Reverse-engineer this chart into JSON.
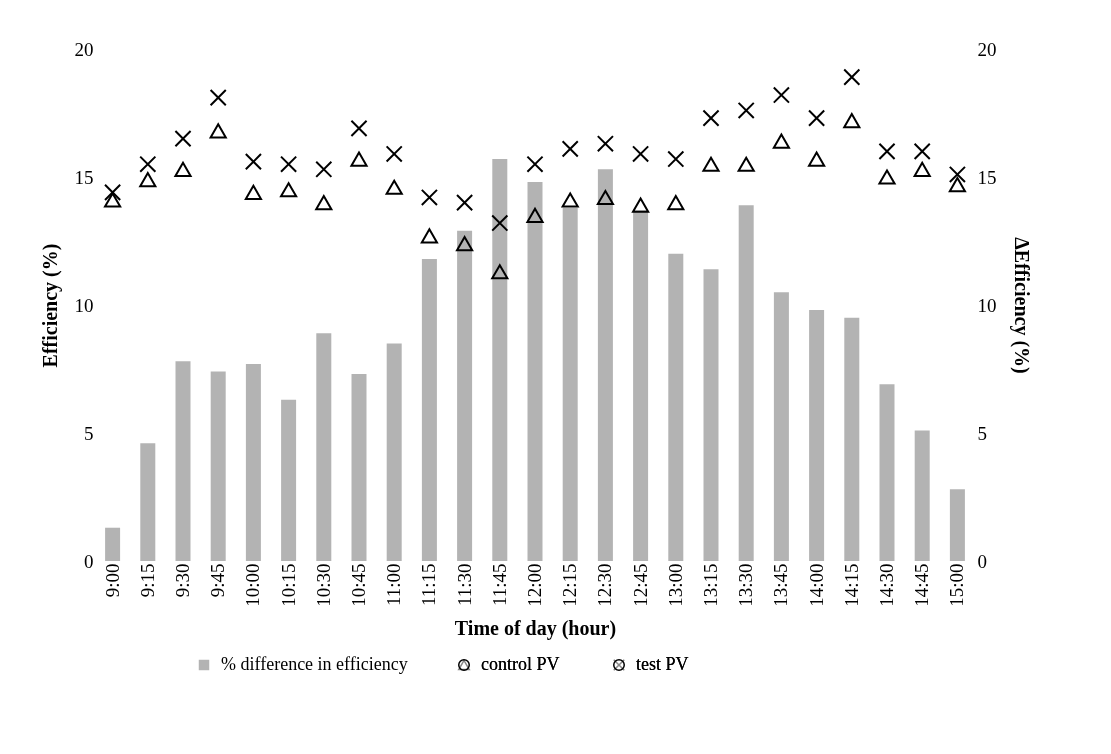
{
  "chart_data": {
    "type": "bar",
    "xlabel": "Time of day (hour)",
    "ylabel": "Efficiency (%)",
    "y2label": "ΔEfficiency (%)",
    "categories": [
      "9:00",
      "9:15",
      "9:30",
      "9:45",
      "10:00",
      "10:15",
      "10:30",
      "10:45",
      "11:00",
      "11:15",
      "11:30",
      "11:45",
      "12:00",
      "12:15",
      "12:30",
      "12:45",
      "13:00",
      "13:15",
      "13:30",
      "13:45",
      "14:00",
      "14:15",
      "14:30",
      "14:45",
      "15:00"
    ],
    "series": [
      {
        "name": "% difference in efficiency",
        "axis": "y2",
        "color": "#b3b3b3",
        "values": [
          1.3,
          4.6,
          7.8,
          7.4,
          7.7,
          6.3,
          8.9,
          7.3,
          8.5,
          11.8,
          12.9,
          15.7,
          14.8,
          13.8,
          15.3,
          13.7,
          12.0,
          11.4,
          13.9,
          10.5,
          9.8,
          9.5,
          6.9,
          5.1,
          2.8
        ]
      },
      {
        "name": "control PV",
        "type": "scatter",
        "marker": "triangle",
        "color": "#000000",
        "values": [
          14.1,
          14.9,
          15.3,
          16.8,
          14.4,
          14.5,
          14.0,
          15.7,
          14.6,
          12.7,
          12.4,
          11.3,
          13.5,
          14.1,
          14.2,
          13.9,
          14.0,
          15.5,
          15.5,
          16.4,
          15.7,
          17.2,
          15.0,
          15.3,
          14.7
        ]
      },
      {
        "name": "test PV",
        "type": "scatter",
        "marker": "cross",
        "color": "#000000",
        "values": [
          14.4,
          15.5,
          16.5,
          18.1,
          15.6,
          15.5,
          15.3,
          16.9,
          15.9,
          14.2,
          14.0,
          13.2,
          15.5,
          16.1,
          16.3,
          15.9,
          15.7,
          17.3,
          17.6,
          18.2,
          17.3,
          18.9,
          16.0,
          16.0,
          15.1
        ]
      }
    ],
    "ylim": [
      0,
      20
    ],
    "yticks": [
      0,
      5,
      10,
      15,
      20
    ],
    "y2lim": [
      0,
      20
    ],
    "y2ticks": [
      0,
      5,
      10,
      15,
      20
    ],
    "grid": false,
    "legend": "bottom"
  }
}
